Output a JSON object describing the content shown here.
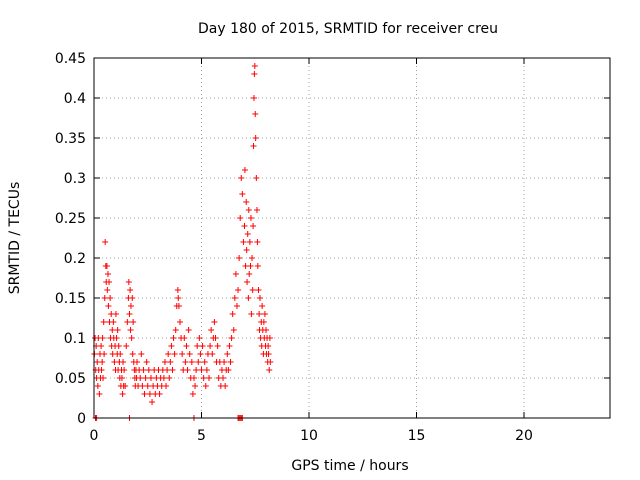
{
  "chart_data": {
    "type": "scatter",
    "title": "Day 180 of 2015, SRMTID for receiver creu",
    "xlabel": "GPS time / hours",
    "ylabel": "SRMTID / TECUs",
    "xlim": [
      0,
      24
    ],
    "ylim": [
      0,
      0.45
    ],
    "xticks": [
      0,
      5,
      10,
      15,
      20
    ],
    "yticks": [
      0,
      0.05,
      0.1,
      0.15,
      0.2,
      0.25,
      0.3,
      0.35,
      0.4,
      0.45
    ],
    "ytick_labels": [
      "0",
      "0.05",
      "0.1",
      "0.15",
      "0.2",
      "0.25",
      "0.3",
      "0.35",
      "0.4",
      "0.45"
    ],
    "grid": true,
    "marker": "+",
    "color": "#ff0000",
    "series": [
      {
        "name": "",
        "points": [
          [
            0.02,
            0.08
          ],
          [
            0.05,
            0.1
          ],
          [
            0.08,
            0.06
          ],
          [
            0.1,
            0.09
          ],
          [
            0.12,
            0.05
          ],
          [
            0.15,
            0.07
          ],
          [
            0.18,
            0.04
          ],
          [
            0.2,
            0.1
          ],
          [
            0.22,
            0.06
          ],
          [
            0.25,
            0.03
          ],
          [
            0.28,
            0.08
          ],
          [
            0.3,
            0.05
          ],
          [
            0.33,
            0.09
          ],
          [
            0.35,
            0.06
          ],
          [
            0.38,
            0.07
          ],
          [
            0.4,
            0.1
          ],
          [
            0.42,
            0.05
          ],
          [
            0.45,
            0.12
          ],
          [
            0.47,
            0.08
          ],
          [
            0.5,
            0.15
          ],
          [
            0.52,
            0.22
          ],
          [
            0.55,
            0.19
          ],
          [
            0.57,
            0.17
          ],
          [
            0.6,
            0.19
          ],
          [
            0.62,
            0.16
          ],
          [
            0.65,
            0.18
          ],
          [
            0.67,
            0.14
          ],
          [
            0.7,
            0.17
          ],
          [
            0.72,
            0.12
          ],
          [
            0.75,
            0.15
          ],
          [
            0.77,
            0.1
          ],
          [
            0.8,
            0.13
          ],
          [
            0.82,
            0.09
          ],
          [
            0.85,
            0.11
          ],
          [
            0.87,
            0.08
          ],
          [
            0.9,
            0.12
          ],
          [
            0.92,
            0.1
          ],
          [
            0.95,
            0.07
          ],
          [
            0.98,
            0.09
          ],
          [
            1.0,
            0.06
          ],
          [
            1.02,
            0.13
          ],
          [
            1.05,
            0.1
          ],
          [
            1.08,
            0.08
          ],
          [
            1.1,
            0.11
          ],
          [
            1.12,
            0.06
          ],
          [
            1.15,
            0.09
          ],
          [
            1.18,
            0.07
          ],
          [
            1.2,
            0.05
          ],
          [
            1.22,
            0.08
          ],
          [
            1.25,
            0.04
          ],
          [
            1.28,
            0.06
          ],
          [
            1.3,
            0.05
          ],
          [
            1.33,
            0.03
          ],
          [
            1.35,
            0.07
          ],
          [
            1.38,
            0.04
          ],
          [
            1.4,
            0.06
          ],
          [
            1.45,
            0.04
          ],
          [
            1.5,
            0.09
          ],
          [
            1.55,
            0.12
          ],
          [
            1.6,
            0.15
          ],
          [
            1.62,
            0.17
          ],
          [
            1.65,
            0.13
          ],
          [
            1.68,
            0.16
          ],
          [
            1.7,
            0.11
          ],
          [
            1.72,
            0.14
          ],
          [
            1.75,
            0.1
          ],
          [
            1.78,
            0.15
          ],
          [
            1.8,
            0.08
          ],
          [
            1.82,
            0.12
          ],
          [
            1.85,
            0.07
          ],
          [
            1.88,
            0.06
          ],
          [
            1.9,
            0.05
          ],
          [
            1.92,
            0.04
          ],
          [
            1.95,
            0.06
          ],
          [
            1.98,
            0.05
          ],
          [
            2.0,
            0.07
          ],
          [
            2.05,
            0.04
          ],
          [
            2.1,
            0.06
          ],
          [
            2.15,
            0.05
          ],
          [
            2.2,
            0.08
          ],
          [
            2.25,
            0.04
          ],
          [
            2.3,
            0.06
          ],
          [
            2.35,
            0.03
          ],
          [
            2.4,
            0.05
          ],
          [
            2.45,
            0.07
          ],
          [
            2.5,
            0.04
          ],
          [
            2.55,
            0.06
          ],
          [
            2.6,
            0.03
          ],
          [
            2.65,
            0.05
          ],
          [
            2.7,
            0.02
          ],
          [
            2.75,
            0.04
          ],
          [
            2.8,
            0.06
          ],
          [
            2.85,
            0.03
          ],
          [
            2.9,
            0.05
          ],
          [
            2.95,
            0.04
          ],
          [
            3.0,
            0.06
          ],
          [
            3.05,
            0.03
          ],
          [
            3.1,
            0.05
          ],
          [
            3.15,
            0.04
          ],
          [
            3.2,
            0.06
          ],
          [
            3.25,
            0.05
          ],
          [
            3.3,
            0.07
          ],
          [
            3.35,
            0.04
          ],
          [
            3.4,
            0.06
          ],
          [
            3.45,
            0.08
          ],
          [
            3.5,
            0.05
          ],
          [
            3.55,
            0.07
          ],
          [
            3.6,
            0.09
          ],
          [
            3.65,
            0.06
          ],
          [
            3.7,
            0.1
          ],
          [
            3.75,
            0.08
          ],
          [
            3.8,
            0.11
          ],
          [
            3.85,
            0.14
          ],
          [
            3.9,
            0.16
          ],
          [
            3.92,
            0.15
          ],
          [
            3.95,
            0.14
          ],
          [
            4.0,
            0.12
          ],
          [
            4.05,
            0.1
          ],
          [
            4.1,
            0.08
          ],
          [
            4.15,
            0.06
          ],
          [
            4.2,
            0.1
          ],
          [
            4.25,
            0.07
          ],
          [
            4.3,
            0.09
          ],
          [
            4.35,
            0.06
          ],
          [
            4.4,
            0.11
          ],
          [
            4.45,
            0.08
          ],
          [
            4.5,
            0.05
          ],
          [
            4.55,
            0.07
          ],
          [
            4.6,
            0.03
          ],
          [
            4.65,
            0.05
          ],
          [
            4.7,
            0.04
          ],
          [
            4.75,
            0.06
          ],
          [
            4.8,
            0.09
          ],
          [
            4.85,
            0.07
          ],
          [
            4.9,
            0.1
          ],
          [
            4.95,
            0.08
          ],
          [
            5.0,
            0.06
          ],
          [
            5.05,
            0.09
          ],
          [
            5.1,
            0.05
          ],
          [
            5.15,
            0.07
          ],
          [
            5.2,
            0.04
          ],
          [
            5.25,
            0.06
          ],
          [
            5.3,
            0.08
          ],
          [
            5.35,
            0.05
          ],
          [
            5.4,
            0.09
          ],
          [
            5.45,
            0.11
          ],
          [
            5.5,
            0.08
          ],
          [
            5.55,
            0.1
          ],
          [
            5.6,
            0.12
          ],
          [
            5.65,
            0.1
          ],
          [
            5.7,
            0.07
          ],
          [
            5.75,
            0.09
          ],
          [
            5.8,
            0.05
          ],
          [
            5.85,
            0.07
          ],
          [
            5.9,
            0.04
          ],
          [
            5.95,
            0.06
          ],
          [
            6.0,
            0.05
          ],
          [
            6.05,
            0.07
          ],
          [
            6.1,
            0.04
          ],
          [
            6.15,
            0.06
          ],
          [
            6.2,
            0.08
          ],
          [
            6.25,
            0.06
          ],
          [
            6.3,
            0.09
          ],
          [
            6.35,
            0.07
          ],
          [
            6.4,
            0.1
          ],
          [
            6.45,
            0.13
          ],
          [
            6.5,
            0.11
          ],
          [
            6.55,
            0.15
          ],
          [
            6.6,
            0.18
          ],
          [
            6.65,
            0.14
          ],
          [
            6.7,
            0.16
          ],
          [
            6.75,
            0.2
          ],
          [
            6.8,
            0.25
          ],
          [
            6.85,
            0.3
          ],
          [
            6.9,
            0.28
          ],
          [
            6.95,
            0.22
          ],
          [
            7.0,
            0.24
          ],
          [
            7.02,
            0.31
          ],
          [
            7.05,
            0.19
          ],
          [
            7.08,
            0.27
          ],
          [
            7.1,
            0.21
          ],
          [
            7.12,
            0.17
          ],
          [
            7.15,
            0.23
          ],
          [
            7.18,
            0.15
          ],
          [
            7.2,
            0.26
          ],
          [
            7.22,
            0.18
          ],
          [
            7.25,
            0.22
          ],
          [
            7.28,
            0.19
          ],
          [
            7.3,
            0.25
          ],
          [
            7.32,
            0.13
          ],
          [
            7.35,
            0.2
          ],
          [
            7.38,
            0.16
          ],
          [
            7.4,
            0.24
          ],
          [
            7.42,
            0.34
          ],
          [
            7.44,
            0.4
          ],
          [
            7.46,
            0.43
          ],
          [
            7.48,
            0.44
          ],
          [
            7.5,
            0.38
          ],
          [
            7.52,
            0.35
          ],
          [
            7.55,
            0.3
          ],
          [
            7.58,
            0.26
          ],
          [
            7.6,
            0.22
          ],
          [
            7.62,
            0.19
          ],
          [
            7.65,
            0.16
          ],
          [
            7.68,
            0.13
          ],
          [
            7.7,
            0.11
          ],
          [
            7.72,
            0.15
          ],
          [
            7.75,
            0.1
          ],
          [
            7.78,
            0.12
          ],
          [
            7.8,
            0.09
          ],
          [
            7.82,
            0.14
          ],
          [
            7.85,
            0.11
          ],
          [
            7.88,
            0.08
          ],
          [
            7.9,
            0.12
          ],
          [
            7.92,
            0.1
          ],
          [
            7.95,
            0.13
          ],
          [
            7.98,
            0.09
          ],
          [
            8.0,
            0.11
          ],
          [
            8.02,
            0.08
          ],
          [
            8.05,
            0.1
          ],
          [
            8.08,
            0.07
          ],
          [
            8.1,
            0.09
          ],
          [
            8.12,
            0.08
          ],
          [
            8.15,
            0.06
          ],
          [
            8.18,
            0.1
          ],
          [
            8.2,
            0.07
          ],
          [
            0.07,
            0.0
          ],
          [
            0.12,
            0.0
          ],
          [
            1.65,
            0.0
          ],
          [
            4.65,
            0.0
          ],
          [
            6.7,
            0.0
          ],
          [
            6.75,
            0.0
          ],
          [
            6.8,
            0.0
          ],
          [
            6.85,
            0.0
          ],
          [
            6.9,
            0.0
          ]
        ]
      }
    ]
  }
}
